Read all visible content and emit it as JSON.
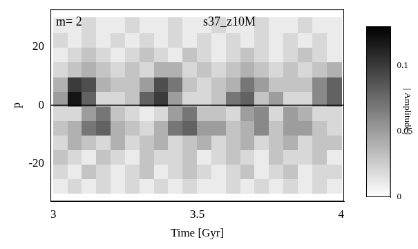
{
  "chart_data": {
    "type": "heatmap",
    "annotations": [
      "m= 2",
      "s37_z10M"
    ],
    "x_label": "Time [Gyr]",
    "y_label": "p",
    "xlim": [
      2.99,
      4.01
    ],
    "xticks": [
      3,
      3.5,
      4
    ],
    "ylim": [
      -33,
      33
    ],
    "yticks": [
      -20,
      0,
      20
    ],
    "grid": false,
    "reference_line": {
      "y": 0
    },
    "x": [
      3.025,
      3.075,
      3.125,
      3.175,
      3.225,
      3.275,
      3.325,
      3.375,
      3.425,
      3.475,
      3.525,
      3.575,
      3.625,
      3.675,
      3.725,
      3.775,
      3.825,
      3.875,
      3.925,
      3.975
    ],
    "y": [
      -27.5,
      -22.5,
      -17.5,
      -12.5,
      -7.5,
      -2.5,
      2.5,
      7.5,
      12.5,
      17.5,
      22.5,
      27.5
    ],
    "cells": [
      [
        0.01,
        0.02,
        0.01,
        0.02,
        0.01,
        0.02,
        0.01,
        0.02,
        0.01,
        0.02,
        0.01,
        0.01,
        0.02,
        0.01,
        0.02,
        0.01,
        0.02,
        0.01,
        0.02,
        0.01
      ],
      [
        0.02,
        0.01,
        0.03,
        0.02,
        0.01,
        0.02,
        0.03,
        0.01,
        0.02,
        0.03,
        0.02,
        0.01,
        0.02,
        0.03,
        0.01,
        0.02,
        0.03,
        0.01,
        0.02,
        0.02
      ],
      [
        0.03,
        0.02,
        0.01,
        0.03,
        0.02,
        0.01,
        0.03,
        0.02,
        0.02,
        0.03,
        0.01,
        0.02,
        0.03,
        0.02,
        0.01,
        0.03,
        0.02,
        0.02,
        0.03,
        0.01
      ],
      [
        0.02,
        0.04,
        0.03,
        0.02,
        0.04,
        0.02,
        0.03,
        0.04,
        0.02,
        0.03,
        0.04,
        0.02,
        0.03,
        0.04,
        0.02,
        0.03,
        0.04,
        0.02,
        0.03,
        0.03
      ],
      [
        0.03,
        0.04,
        0.07,
        0.08,
        0.04,
        0.03,
        0.02,
        0.04,
        0.07,
        0.08,
        0.05,
        0.05,
        0.03,
        0.04,
        0.06,
        0.03,
        0.05,
        0.05,
        0.03,
        0.02
      ],
      [
        0.02,
        0.02,
        0.05,
        0.07,
        0.03,
        0.02,
        0.01,
        0.02,
        0.05,
        0.07,
        0.03,
        0.03,
        0.02,
        0.05,
        0.06,
        0.02,
        0.05,
        0.04,
        0.02,
        0.02
      ],
      [
        0.05,
        0.12,
        0.08,
        0.02,
        0.02,
        0.03,
        0.08,
        0.1,
        0.05,
        0.02,
        0.02,
        0.03,
        0.07,
        0.08,
        0.03,
        0.05,
        0.02,
        0.02,
        0.06,
        0.08
      ],
      [
        0.04,
        0.1,
        0.09,
        0.04,
        0.03,
        0.03,
        0.05,
        0.09,
        0.07,
        0.03,
        0.02,
        0.03,
        0.04,
        0.07,
        0.05,
        0.03,
        0.03,
        0.03,
        0.06,
        0.08
      ],
      [
        0.02,
        0.03,
        0.04,
        0.03,
        0.02,
        0.03,
        0.02,
        0.04,
        0.04,
        0.02,
        0.03,
        0.02,
        0.03,
        0.04,
        0.03,
        0.02,
        0.03,
        0.02,
        0.03,
        0.04
      ],
      [
        0.01,
        0.02,
        0.03,
        0.02,
        0.01,
        0.02,
        0.03,
        0.02,
        0.01,
        0.03,
        0.02,
        0.01,
        0.02,
        0.03,
        0.02,
        0.01,
        0.02,
        0.03,
        0.02,
        0.01
      ],
      [
        0.02,
        0.01,
        0.02,
        0.01,
        0.02,
        0.01,
        0.02,
        0.01,
        0.02,
        0.01,
        0.02,
        0.01,
        0.02,
        0.01,
        0.02,
        0.01,
        0.02,
        0.01,
        0.02,
        0.01
      ],
      [
        0.01,
        0.01,
        0.02,
        0.01,
        0.01,
        0.02,
        0.01,
        0.01,
        0.02,
        0.01,
        0.01,
        0.02,
        0.01,
        0.01,
        0.02,
        0.01,
        0.01,
        0.02,
        0.01,
        0.01
      ]
    ],
    "colorbar": {
      "range": [
        0,
        0.13
      ],
      "ticks": [
        0,
        0.05,
        0.1
      ],
      "label": "| Amplitude |"
    }
  }
}
